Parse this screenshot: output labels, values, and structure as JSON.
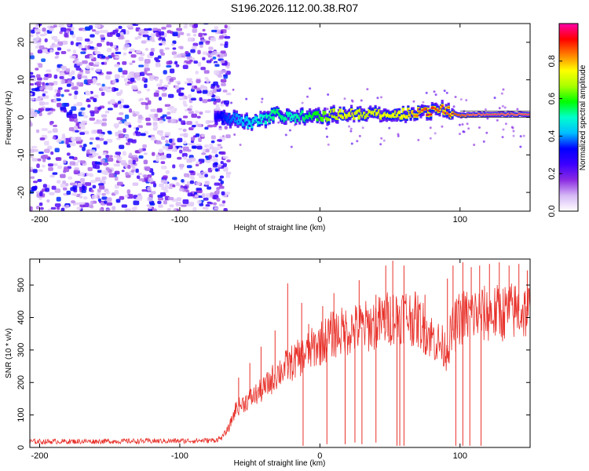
{
  "title": "S196.2026.112.00.38.R07",
  "chart_data": [
    {
      "type": "heatmap",
      "name": "spectrogram",
      "xlabel": "Height of straight line (km)",
      "ylabel": "Frequency (Hz)",
      "xlim": [
        -207,
        150
      ],
      "ylim": [
        -25,
        25
      ],
      "x_ticks": [
        -200,
        -100,
        0,
        100
      ],
      "y_ticks": [
        -20,
        -10,
        0,
        10,
        20
      ],
      "x_tick_labels": [
        "-200",
        "-100",
        "0",
        "100"
      ],
      "y_tick_labels": [
        "-20",
        "-10",
        "0",
        "10",
        "20"
      ],
      "noise_region_x": [
        -207,
        -75
      ],
      "signal_track": {
        "x": [
          -75,
          -60,
          -50,
          -40,
          -30,
          -20,
          -10,
          0,
          10,
          20,
          30,
          40,
          50,
          60,
          70,
          80,
          90,
          100,
          110,
          120,
          130,
          140,
          150
        ],
        "freq": [
          0.5,
          -0.5,
          -1.5,
          -0.5,
          1.0,
          -0.5,
          0.5,
          0.0,
          0.8,
          0.8,
          1.0,
          0.8,
          0.8,
          0.8,
          1.5,
          1.8,
          2.0,
          0.5,
          0.8,
          0.8,
          0.8,
          0.8,
          0.8
        ],
        "amplitude": [
          0.3,
          0.4,
          0.45,
          0.5,
          0.55,
          0.5,
          0.55,
          0.6,
          0.7,
          0.75,
          0.7,
          0.75,
          0.75,
          0.75,
          0.85,
          0.9,
          0.85,
          0.95,
          1.0,
          1.0,
          1.0,
          1.0,
          1.0
        ]
      },
      "colorbar": {
        "label": "Normalized spectral amplitude",
        "range": [
          0.0,
          1.0
        ],
        "ticks": [
          0.0,
          0.2,
          0.4,
          0.6,
          0.8
        ],
        "tick_labels": [
          "0.0",
          "0.2",
          "0.4",
          "0.6",
          "0.8"
        ],
        "colors": [
          "#ffffff",
          "#d6b8f5",
          "#8a2be2",
          "#3d00ff",
          "#0000ff",
          "#00bfff",
          "#00ffcc",
          "#00ff00",
          "#aaff00",
          "#ffff00",
          "#ff8000",
          "#ff0000",
          "#ff00aa"
        ]
      }
    },
    {
      "type": "line",
      "name": "snr",
      "xlabel": "Height of straight line (km)",
      "ylabel": "SNR (10 * v/v)",
      "xlim": [
        -207,
        150
      ],
      "ylim": [
        0,
        580
      ],
      "x_ticks": [
        -200,
        -100,
        0,
        100
      ],
      "y_ticks": [
        0,
        100,
        200,
        300,
        400,
        500
      ],
      "x_tick_labels": [
        "-200",
        "-100",
        "0",
        "100"
      ],
      "y_tick_labels": [
        "0",
        "100",
        "200",
        "300",
        "400",
        "500"
      ],
      "color": "#e8312a",
      "baseline": {
        "x": [
          -207,
          -100,
          -75,
          -70,
          -65,
          -60,
          -50,
          -40,
          -30,
          -20,
          -10,
          0,
          10,
          20,
          30,
          40,
          50,
          60,
          70,
          80,
          90,
          95,
          100,
          110,
          120,
          130,
          140,
          150
        ],
        "y": [
          18,
          20,
          22,
          30,
          60,
          120,
          150,
          180,
          230,
          260,
          290,
          320,
          350,
          360,
          370,
          380,
          400,
          410,
          390,
          340,
          300,
          360,
          400,
          410,
          410,
          415,
          420,
          420
        ]
      },
      "spikes": [
        {
          "x": -58,
          "y": 215
        },
        {
          "x": -50,
          "y": 260
        },
        {
          "x": -42,
          "y": 310
        },
        {
          "x": -32,
          "y": 360
        },
        {
          "x": -23,
          "y": 505
        },
        {
          "x": -13,
          "y": 445
        },
        {
          "x": -8,
          "y": 380
        },
        {
          "x": 2,
          "y": 435
        },
        {
          "x": 10,
          "y": 475
        },
        {
          "x": 17,
          "y": 390
        },
        {
          "x": 28,
          "y": 515
        },
        {
          "x": 40,
          "y": 470
        },
        {
          "x": 47,
          "y": 560
        },
        {
          "x": 52,
          "y": 575
        },
        {
          "x": 60,
          "y": 560
        },
        {
          "x": 68,
          "y": 480
        },
        {
          "x": 75,
          "y": 470
        },
        {
          "x": 91,
          "y": 520
        },
        {
          "x": 95,
          "y": 560
        },
        {
          "x": 102,
          "y": 570
        },
        {
          "x": 108,
          "y": 555
        },
        {
          "x": 114,
          "y": 560
        },
        {
          "x": 121,
          "y": 565
        },
        {
          "x": 128,
          "y": 570
        },
        {
          "x": 135,
          "y": 560
        },
        {
          "x": 142,
          "y": 565
        },
        {
          "x": 148,
          "y": 545
        }
      ],
      "dropouts": [
        {
          "x": -12,
          "y": 5
        },
        {
          "x": 5,
          "y": 10
        },
        {
          "x": 18,
          "y": 10
        },
        {
          "x": 25,
          "y": 15
        },
        {
          "x": 30,
          "y": 10
        },
        {
          "x": 40,
          "y": 15
        },
        {
          "x": 55,
          "y": 5
        },
        {
          "x": 57,
          "y": 5
        },
        {
          "x": 60,
          "y": 5
        },
        {
          "x": 97,
          "y": 5
        },
        {
          "x": 102,
          "y": 5
        },
        {
          "x": 107,
          "y": 5
        },
        {
          "x": 115,
          "y": 5
        }
      ]
    }
  ]
}
